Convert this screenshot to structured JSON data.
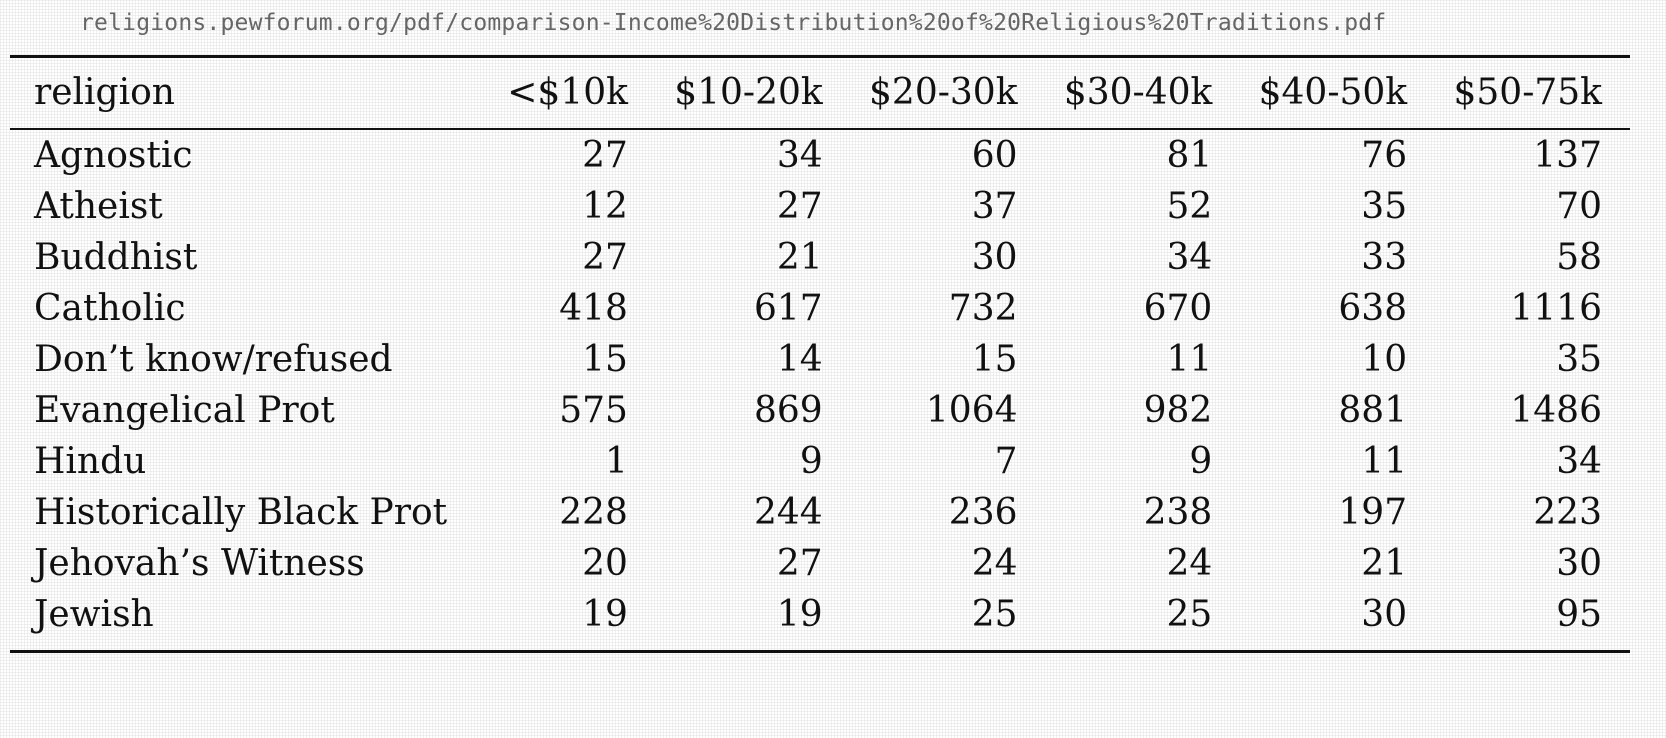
{
  "url": "religions.pewforum.org/pdf/comparison-Income%20Distribution%20of%20Religious%20Traditions.pdf",
  "table": {
    "headers": [
      "religion",
      "<$10k",
      "$10-20k",
      "$20-30k",
      "$30-40k",
      "$40-50k",
      "$50-75k"
    ],
    "rows": [
      [
        "Agnostic",
        "27",
        "34",
        "60",
        "81",
        "76",
        "137"
      ],
      [
        "Atheist",
        "12",
        "27",
        "37",
        "52",
        "35",
        "70"
      ],
      [
        "Buddhist",
        "27",
        "21",
        "30",
        "34",
        "33",
        "58"
      ],
      [
        "Catholic",
        "418",
        "617",
        "732",
        "670",
        "638",
        "1116"
      ],
      [
        "Don’t know/refused",
        "15",
        "14",
        "15",
        "11",
        "10",
        "35"
      ],
      [
        "Evangelical Prot",
        "575",
        "869",
        "1064",
        "982",
        "881",
        "1486"
      ],
      [
        "Hindu",
        "1",
        "9",
        "7",
        "9",
        "11",
        "34"
      ],
      [
        "Historically Black Prot",
        "228",
        "244",
        "236",
        "238",
        "197",
        "223"
      ],
      [
        "Jehovah’s Witness",
        "20",
        "27",
        "24",
        "24",
        "21",
        "30"
      ],
      [
        "Jewish",
        "19",
        "19",
        "25",
        "25",
        "30",
        "95"
      ]
    ]
  }
}
